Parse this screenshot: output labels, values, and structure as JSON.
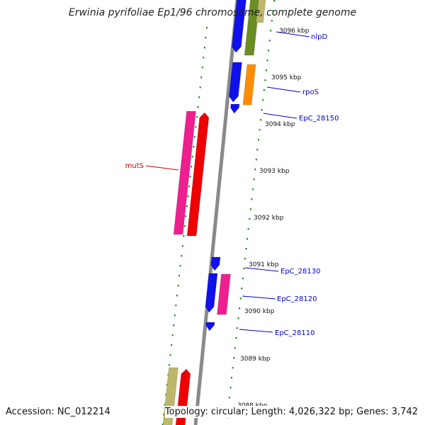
{
  "title": "Erwinia pyrifoliae Ep1/96 chromosome, complete genome",
  "accession": "Accession: NC_012214",
  "topology": "Topology: circular; Length: 4,026,322 bp; Genes: 3,742",
  "colors": {
    "backbone": "#8a8a8a",
    "ticks": "#1a8a1a",
    "blue_gene": "#1010ee",
    "olive_gene": "#6b8e23",
    "orange_gene": "#ff8c00",
    "magenta_gene": "#ee1f8f",
    "red_gene": "#ee0000",
    "khaki_gene": "#bdb76b",
    "blue_label": "#0000cc",
    "red_label": "#cc0000"
  },
  "scale_labels": [
    "3096 kbp",
    "3095 kbp",
    "3094 kbp",
    "3093 kbp",
    "3092 kbp",
    "3091 kbp",
    "3090 kbp",
    "3089 kbp",
    "3088 kbp"
  ],
  "gene_labels": [
    {
      "text": "nlpD",
      "color": "blue"
    },
    {
      "text": "rpoS",
      "color": "blue"
    },
    {
      "text": "EpC_28150",
      "color": "blue"
    },
    {
      "text": "mutS",
      "color": "red"
    },
    {
      "text": "EpC_28130",
      "color": "blue"
    },
    {
      "text": "EpC_28120",
      "color": "blue"
    },
    {
      "text": "EpC_28110",
      "color": "blue"
    }
  ]
}
